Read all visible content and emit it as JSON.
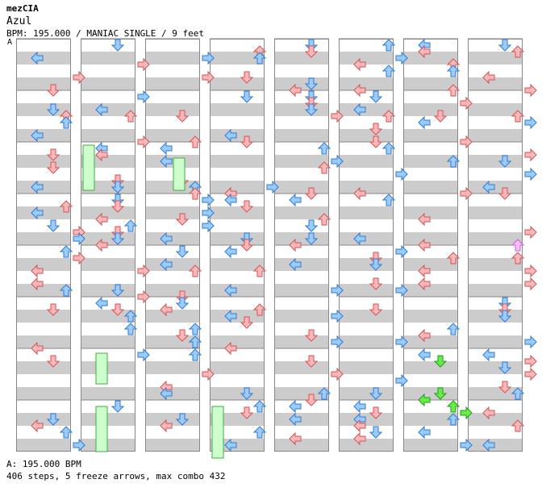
{
  "header": {
    "author": "mezCIA",
    "title": "Azul",
    "info": "BPM: 195.000 / MANIAC SINGLE / 9 feet",
    "bpm_marker": "A"
  },
  "footer": {
    "bpm_line": "A: 195.000 BPM",
    "stats_line": "406 steps, 5 freeze arrows, max combo 432"
  },
  "colors": {
    "background": "#ffffff",
    "stripe": "#cccccc",
    "column_border": "#888888",
    "red_fill": "#ffb7b7",
    "red_stroke": "#cc5555",
    "blue_fill": "#99ccff",
    "blue_stroke": "#3377cc",
    "green_fill": "#66ee44",
    "green_stroke": "#229922",
    "pink_fill": "#ffbbff",
    "pink_stroke": "#bb66cc",
    "freeze_fill": "#ccffcc",
    "freeze_stroke": "#44aa44"
  },
  "chart_data": {
    "type": "step-chart",
    "style": "MANIAC SINGLE",
    "bpm": 195.0,
    "difficulty_feet": 9,
    "steps_total": 406,
    "freeze_arrows": 5,
    "max_combo": 432,
    "columns_count": 8,
    "measures_per_column": 8
  }
}
